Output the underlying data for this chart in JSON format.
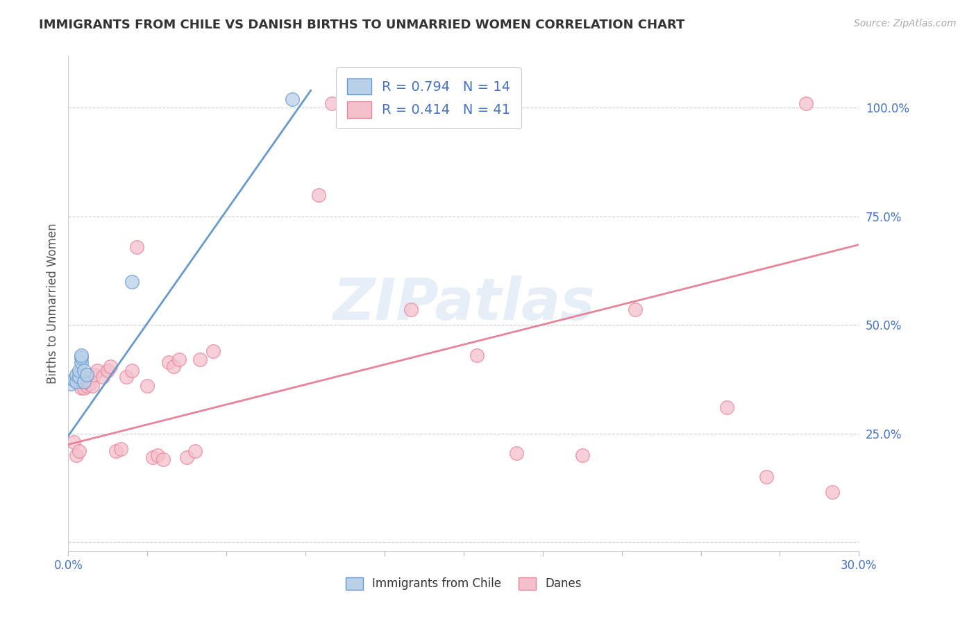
{
  "title": "IMMIGRANTS FROM CHILE VS DANISH BIRTHS TO UNMARRIED WOMEN CORRELATION CHART",
  "source": "Source: ZipAtlas.com",
  "ylabel": "Births to Unmarried Women",
  "y_ticks": [
    0.0,
    0.25,
    0.5,
    0.75,
    1.0
  ],
  "y_tick_labels": [
    "",
    "25.0%",
    "50.0%",
    "75.0%",
    "100.0%"
  ],
  "x_ticks": [
    0.0,
    0.03,
    0.06,
    0.09,
    0.12,
    0.15,
    0.18,
    0.21,
    0.24,
    0.27,
    0.3
  ],
  "legend_blue_r": "R = 0.794",
  "legend_blue_n": "N = 14",
  "legend_pink_r": "R = 0.414",
  "legend_pink_n": "N = 41",
  "legend_label_blue": "Immigrants from Chile",
  "legend_label_pink": "Danes",
  "blue_color": "#6699cc",
  "pink_color": "#e8849a",
  "blue_dot_face": "#b8d0e8",
  "pink_dot_face": "#f5c0cc",
  "watermark": "ZIPatlas",
  "blue_x": [
    0.001,
    0.002,
    0.003,
    0.003,
    0.004,
    0.004,
    0.005,
    0.005,
    0.005,
    0.006,
    0.006,
    0.007,
    0.024,
    0.085
  ],
  "blue_y": [
    0.365,
    0.375,
    0.37,
    0.385,
    0.38,
    0.395,
    0.415,
    0.425,
    0.43,
    0.37,
    0.395,
    0.385,
    0.6,
    1.02
  ],
  "pink_x": [
    0.002,
    0.003,
    0.004,
    0.005,
    0.005,
    0.006,
    0.007,
    0.008,
    0.009,
    0.01,
    0.011,
    0.013,
    0.015,
    0.016,
    0.018,
    0.02,
    0.022,
    0.024,
    0.026,
    0.03,
    0.032,
    0.034,
    0.036,
    0.038,
    0.04,
    0.042,
    0.045,
    0.048,
    0.05,
    0.055,
    0.095,
    0.1,
    0.13,
    0.155,
    0.17,
    0.195,
    0.215,
    0.25,
    0.265,
    0.28,
    0.29
  ],
  "pink_y": [
    0.23,
    0.2,
    0.21,
    0.38,
    0.355,
    0.355,
    0.36,
    0.365,
    0.36,
    0.385,
    0.395,
    0.38,
    0.395,
    0.405,
    0.21,
    0.215,
    0.38,
    0.395,
    0.68,
    0.36,
    0.195,
    0.2,
    0.19,
    0.415,
    0.405,
    0.42,
    0.195,
    0.21,
    0.42,
    0.44,
    0.8,
    1.01,
    0.535,
    0.43,
    0.205,
    0.2,
    0.535,
    0.31,
    0.15,
    1.01,
    0.115
  ],
  "blue_line_x": [
    0.0,
    0.092
  ],
  "blue_line_y": [
    0.245,
    1.04
  ],
  "pink_line_x": [
    0.0,
    0.3
  ],
  "pink_line_y": [
    0.225,
    0.685
  ],
  "xlim": [
    0.0,
    0.3
  ],
  "ylim": [
    -0.02,
    1.12
  ]
}
